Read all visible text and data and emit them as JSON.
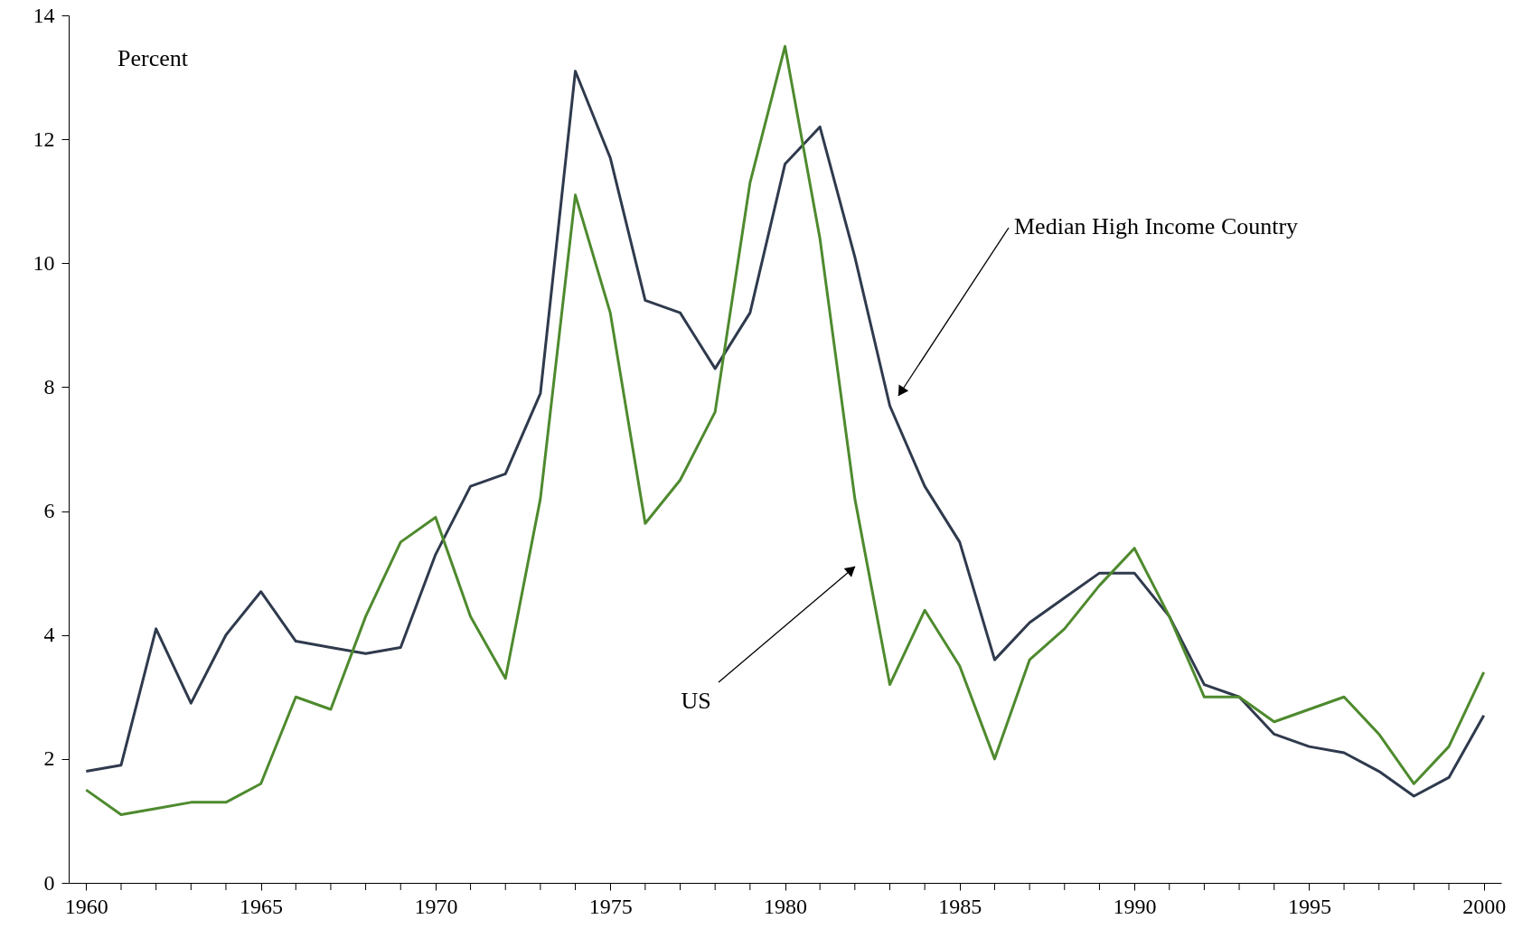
{
  "chart_data": {
    "type": "line",
    "x": [
      1960,
      1961,
      1962,
      1963,
      1964,
      1965,
      1966,
      1967,
      1968,
      1969,
      1970,
      1971,
      1972,
      1973,
      1974,
      1975,
      1976,
      1977,
      1978,
      1979,
      1980,
      1981,
      1982,
      1983,
      1984,
      1985,
      1986,
      1987,
      1988,
      1989,
      1990,
      1991,
      1992,
      1993,
      1994,
      1995,
      1996,
      1997,
      1998,
      1999,
      2000
    ],
    "series": [
      {
        "color": "#2f3a4d",
        "values": [
          1.8,
          1.9,
          4.1,
          2.9,
          4.0,
          4.7,
          3.9,
          3.8,
          3.7,
          3.8,
          5.3,
          6.4,
          6.6,
          7.9,
          13.1,
          11.7,
          9.4,
          9.2,
          8.3,
          9.2,
          11.6,
          12.2,
          10.1,
          7.7,
          6.4,
          5.5,
          3.6,
          4.2,
          4.6,
          5.0,
          5.0,
          4.3,
          3.2,
          3.0,
          2.4,
          2.2,
          2.1,
          1.8,
          1.4,
          1.7,
          2.7
        ]
      },
      {
        "color": "#4e8a2e",
        "values": [
          1.5,
          1.1,
          1.2,
          1.3,
          1.3,
          1.6,
          3.0,
          2.8,
          4.3,
          5.5,
          5.9,
          4.3,
          3.3,
          6.2,
          11.1,
          9.2,
          5.8,
          6.5,
          7.6,
          11.3,
          13.5,
          10.4,
          6.2,
          3.2,
          4.4,
          3.5,
          2.0,
          3.6,
          4.1,
          4.8,
          5.4,
          4.3,
          3.0,
          3.0,
          2.6,
          2.8,
          3.0,
          2.4,
          1.6,
          2.2,
          3.4
        ]
      }
    ],
    "xlim": [
      1959.5,
      2000.5
    ],
    "xticks": [
      1960,
      {
        "value": 1961,
        "label": null
      },
      {
        "value": 1962,
        "label": null
      },
      {
        "value": 1963,
        "label": null
      },
      {
        "value": 1964,
        "label": null
      },
      1965,
      {
        "value": 1966,
        "label": null
      },
      {
        "value": 1967,
        "label": null
      },
      {
        "value": 1968,
        "label": null
      },
      {
        "value": 1969,
        "label": null
      },
      1970,
      {
        "value": 1971,
        "label": null
      },
      {
        "value": 1972,
        "label": null
      },
      {
        "value": 1973,
        "label": null
      },
      {
        "value": 1974,
        "label": null
      },
      1975,
      {
        "value": 1976,
        "label": null
      },
      {
        "value": 1977,
        "label": null
      },
      {
        "value": 1978,
        "label": null
      },
      {
        "value": 1979,
        "label": null
      },
      1980,
      {
        "value": 1981,
        "label": null
      },
      {
        "value": 1982,
        "label": null
      },
      {
        "value": 1983,
        "label": null
      },
      {
        "value": 1984,
        "label": null
      },
      1985,
      {
        "value": 1986,
        "label": null
      },
      {
        "value": 1987,
        "label": null
      },
      {
        "value": 1988,
        "label": null
      },
      {
        "value": 1989,
        "label": null
      },
      1990,
      {
        "value": 1991,
        "label": null
      },
      {
        "value": 1992,
        "label": null
      },
      {
        "value": 1993,
        "label": null
      },
      {
        "value": 1994,
        "label": null
      },
      1995,
      {
        "value": 1996,
        "label": null
      },
      {
        "value": 1997,
        "label": null
      },
      {
        "value": 1998,
        "label": null
      },
      {
        "value": 1999,
        "label": null
      },
      2000
    ],
    "ylim": [
      0,
      14
    ],
    "yticks": [
      0,
      2,
      4,
      6,
      8,
      10,
      12,
      14
    ],
    "grid": false,
    "marker": "none",
    "line_style": "solid",
    "annotations": [
      "Percent",
      "Median High Income Country",
      "US"
    ]
  }
}
